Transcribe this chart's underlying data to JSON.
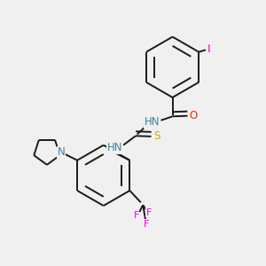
{
  "bg_color": "#f0f0f0",
  "bond_color": "#1a1a1a",
  "atom_colors": {
    "N": "#4080a0",
    "O": "#ff2200",
    "S": "#ccaa00",
    "I": "#cc22bb",
    "F": "#ee00ee",
    "C": "#1a1a1a"
  },
  "lw": 1.4,
  "fs": 8.5
}
